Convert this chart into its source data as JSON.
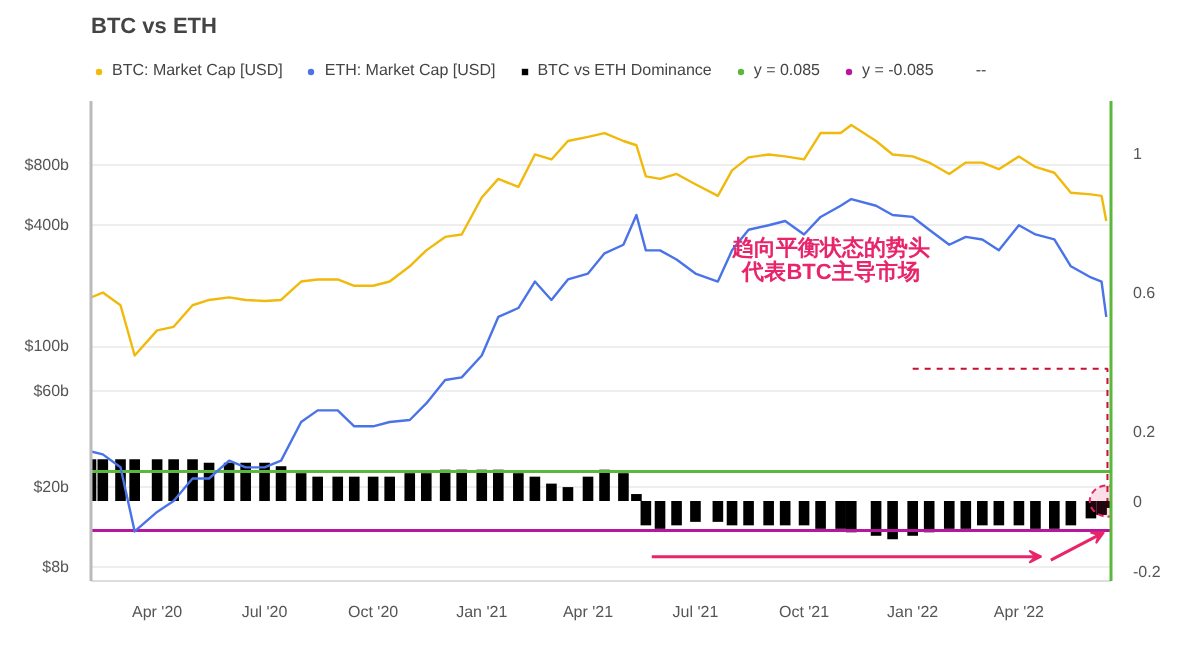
{
  "chart_data": {
    "type": "line",
    "title": "BTC vs ETH",
    "x": [
      "2020-02-05",
      "2020-02-15",
      "2020-03-01",
      "2020-03-13",
      "2020-04-01",
      "2020-04-15",
      "2020-05-01",
      "2020-05-15",
      "2020-06-01",
      "2020-06-15",
      "2020-07-01",
      "2020-07-15",
      "2020-08-01",
      "2020-08-15",
      "2020-09-01",
      "2020-09-15",
      "2020-10-01",
      "2020-10-15",
      "2020-11-01",
      "2020-11-15",
      "2020-12-01",
      "2020-12-15",
      "2021-01-01",
      "2021-01-15",
      "2021-02-01",
      "2021-02-15",
      "2021-03-01",
      "2021-03-15",
      "2021-04-01",
      "2021-04-15",
      "2021-05-01",
      "2021-05-12",
      "2021-05-20",
      "2021-06-01",
      "2021-06-15",
      "2021-07-01",
      "2021-07-20",
      "2021-08-01",
      "2021-08-15",
      "2021-09-01",
      "2021-09-15",
      "2021-10-01",
      "2021-10-15",
      "2021-11-01",
      "2021-11-10",
      "2021-12-01",
      "2021-12-15",
      "2022-01-01",
      "2022-01-15",
      "2022-02-01",
      "2022-02-15",
      "2022-03-01",
      "2022-03-15",
      "2022-04-01",
      "2022-04-15",
      "2022-05-01",
      "2022-05-15",
      "2022-06-01",
      "2022-06-10",
      "2022-06-14"
    ],
    "series": [
      {
        "name": "BTC: Market Cap [USD]",
        "color": "#f0b90b",
        "values": [
          175,
          185,
          160,
          90,
          120,
          125,
          160,
          170,
          175,
          170,
          168,
          170,
          210,
          215,
          215,
          200,
          200,
          210,
          250,
          300,
          350,
          360,
          550,
          680,
          620,
          900,
          850,
          1050,
          1100,
          1150,
          1050,
          1000,
          700,
          680,
          720,
          640,
          560,
          750,
          870,
          900,
          880,
          850,
          1150,
          1150,
          1260,
          1050,
          900,
          880,
          820,
          720,
          820,
          820,
          760,
          880,
          780,
          730,
          580,
          570,
          560,
          420
        ]
      },
      {
        "name": "ETH: Market Cap [USD]",
        "color": "#4a73e8",
        "values": [
          30,
          29,
          25,
          12,
          15,
          17,
          22,
          22,
          27,
          25,
          25,
          27,
          42,
          48,
          48,
          40,
          40,
          42,
          43,
          52,
          68,
          70,
          90,
          140,
          155,
          210,
          170,
          215,
          230,
          290,
          320,
          450,
          300,
          300,
          270,
          230,
          210,
          300,
          380,
          400,
          420,
          360,
          440,
          500,
          540,
          500,
          450,
          440,
          380,
          320,
          350,
          340,
          300,
          400,
          360,
          340,
          250,
          220,
          210,
          140
        ]
      },
      {
        "name": "BTC vs ETH Dominance",
        "type": "bar",
        "axis": "y2",
        "color": "#000000",
        "values": [
          0.12,
          0.12,
          0.12,
          0.12,
          0.12,
          0.12,
          0.12,
          0.11,
          0.11,
          0.11,
          0.11,
          0.1,
          0.08,
          0.07,
          0.07,
          0.07,
          0.07,
          0.07,
          0.08,
          0.08,
          0.09,
          0.09,
          0.09,
          0.09,
          0.08,
          0.07,
          0.05,
          0.04,
          0.07,
          0.09,
          0.08,
          0.02,
          -0.07,
          -0.08,
          -0.07,
          -0.06,
          -0.06,
          -0.07,
          -0.07,
          -0.07,
          -0.07,
          -0.07,
          -0.08,
          -0.08,
          -0.09,
          -0.1,
          -0.11,
          -0.1,
          -0.09,
          -0.08,
          -0.08,
          -0.07,
          -0.07,
          -0.07,
          -0.08,
          -0.08,
          -0.07,
          -0.05,
          -0.04,
          -0.02
        ]
      }
    ],
    "xlim": [
      "2020-02-05",
      "2022-06-18"
    ],
    "xticks": [
      {
        "value": "2020-04-01",
        "label": "Apr '20"
      },
      {
        "value": "2020-07-01",
        "label": "Jul '20"
      },
      {
        "value": "2020-10-01",
        "label": "Oct '20"
      },
      {
        "value": "2021-01-01",
        "label": "Jan '21"
      },
      {
        "value": "2021-04-01",
        "label": "Apr '21"
      },
      {
        "value": "2021-07-01",
        "label": "Jul '21"
      },
      {
        "value": "2021-10-01",
        "label": "Oct '21"
      },
      {
        "value": "2022-01-01",
        "label": "Jan '22"
      },
      {
        "value": "2022-04-01",
        "label": "Apr '22"
      }
    ],
    "log": "y",
    "ylim": [
      6.8,
      1660
    ],
    "yticks": [
      {
        "value": 8,
        "label": "$8b"
      },
      {
        "value": 20,
        "label": "$20b"
      },
      {
        "value": 60,
        "label": "$60b"
      },
      {
        "value": 100,
        "label": "$100b"
      },
      {
        "value": 400,
        "label": "$400b"
      },
      {
        "value": 800,
        "label": "$800b"
      }
    ],
    "y2lim": [
      -0.23,
      1.15
    ],
    "y2ticks": [
      -0.2,
      0,
      0.2,
      0.6,
      1
    ],
    "ref_lines": [
      {
        "axis": "y2",
        "value": 0.085,
        "label": "y = 0.085",
        "color": "#5cb83c"
      },
      {
        "axis": "y2",
        "value": -0.085,
        "label": "y = -0.085",
        "color": "#b5179e"
      }
    ],
    "annotations": [
      "趋向平衡状态的势头代表BTC主导市场",
      "--"
    ],
    "grid": "y",
    "legend": "top"
  }
}
